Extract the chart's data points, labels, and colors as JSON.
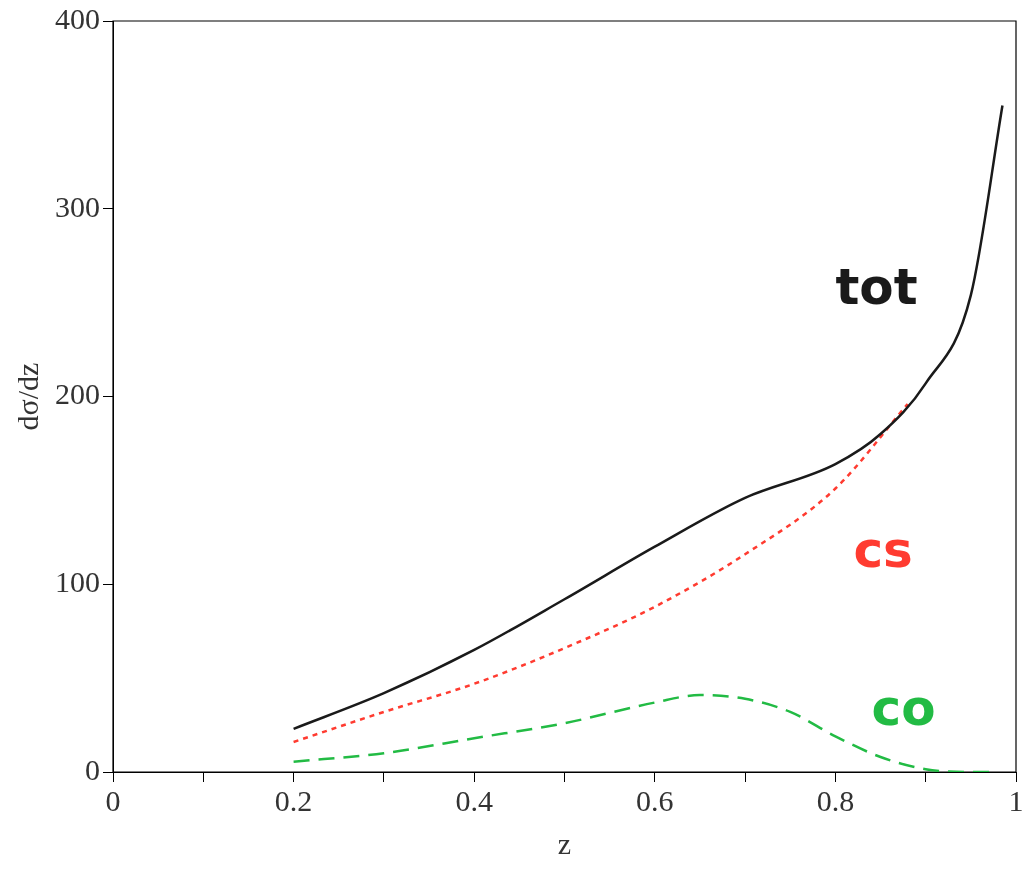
{
  "chart_data": {
    "type": "line",
    "xlabel": "z",
    "ylabel": "dσ/dz",
    "xlim": [
      0,
      1
    ],
    "ylim": [
      0,
      400
    ],
    "xticks": [
      0,
      {
        "value": 0.1,
        "label": null
      },
      0.2,
      {
        "value": 0.3,
        "label": null
      },
      0.4,
      {
        "value": 0.5,
        "label": null
      },
      0.6,
      {
        "value": 0.7,
        "label": null
      },
      0.8,
      {
        "value": 0.9,
        "label": null
      },
      1
    ],
    "yticks": [
      0,
      100,
      200,
      300,
      400
    ],
    "grid": false,
    "legend": false,
    "marker": "none",
    "series": [
      {
        "name": "tot",
        "color": "#1a1a1a",
        "line_style": "solid",
        "x": [
          0.2,
          0.3,
          0.4,
          0.5,
          0.6,
          0.7,
          0.8,
          0.85,
          0.9,
          0.95,
          0.985
        ],
        "values": [
          23,
          42,
          65,
          92,
          120,
          146,
          164,
          180,
          207,
          254,
          355
        ]
      },
      {
        "name": "cs",
        "color": "#ff3b30",
        "line_style": "dotted",
        "x": [
          0.2,
          0.3,
          0.4,
          0.5,
          0.6,
          0.7,
          0.8,
          0.88
        ],
        "values": [
          16,
          32,
          47,
          66,
          88,
          116,
          151,
          196
        ]
      },
      {
        "name": "co",
        "color": "#22bb44",
        "line_style": "dashed",
        "x": [
          0.2,
          0.3,
          0.4,
          0.5,
          0.6,
          0.65,
          0.7,
          0.75,
          0.8,
          0.85,
          0.9,
          0.95,
          0.98
        ],
        "values": [
          5.5,
          10,
          18,
          26,
          37,
          41,
          39,
          32,
          19,
          8,
          1.5,
          0,
          0
        ]
      }
    ]
  }
}
